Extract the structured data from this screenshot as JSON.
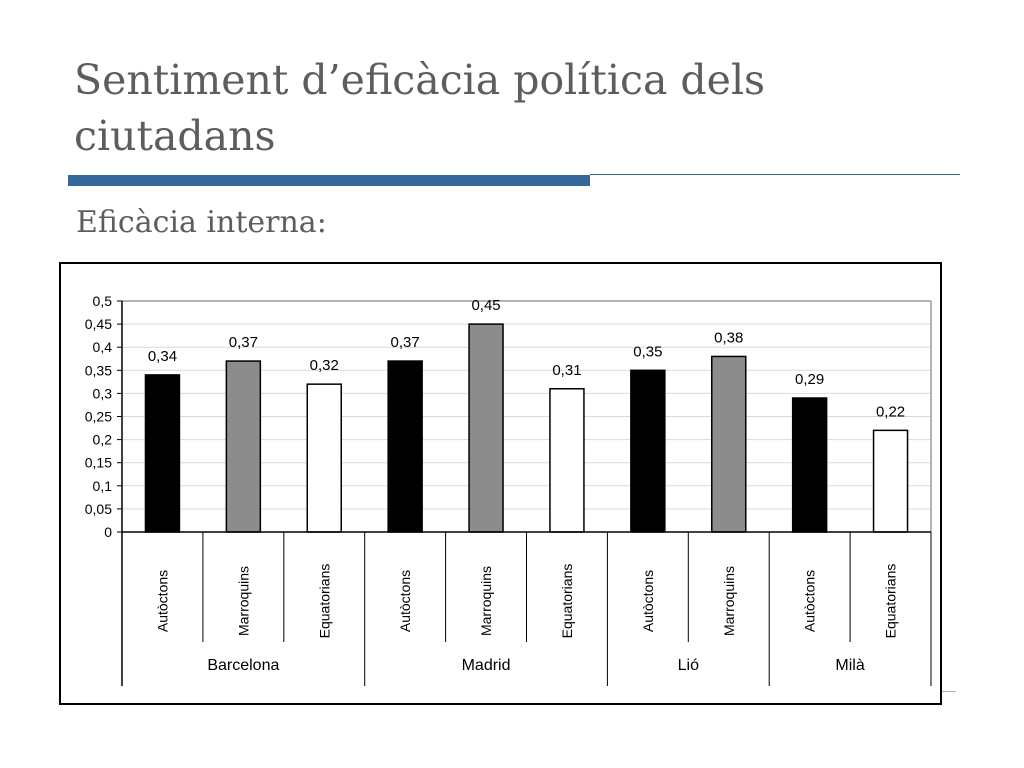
{
  "slide": {
    "title": "Sentiment d’eficàcia política dels ciutadans",
    "subtitle": "Eficàcia interna:"
  },
  "colors": {
    "accent": "#34679a",
    "text": "#5d5d5d",
    "series_autoctons": "#000000",
    "series_marroquins": "#8c8c8c",
    "series_equatorians": "#ffffff"
  },
  "chart_data": {
    "type": "bar",
    "title": "",
    "xlabel": "",
    "ylabel": "",
    "ylim": [
      0,
      0.5
    ],
    "yticks": [
      "0",
      "0,05",
      "0,1",
      "0,15",
      "0,2",
      "0,25",
      "0,3",
      "0,35",
      "0,4",
      "0,45",
      "0,5"
    ],
    "grid": true,
    "groups": [
      {
        "city": "Barcelona",
        "bars": [
          {
            "category": "Autòctons",
            "value": 0.34,
            "label": "0,34"
          },
          {
            "category": "Marroquins",
            "value": 0.37,
            "label": "0,37"
          },
          {
            "category": "Equatorians",
            "value": 0.32,
            "label": "0,32"
          }
        ]
      },
      {
        "city": "Madrid",
        "bars": [
          {
            "category": "Autòctons",
            "value": 0.37,
            "label": "0,37"
          },
          {
            "category": "Marroquins",
            "value": 0.45,
            "label": "0,45"
          },
          {
            "category": "Equatorians",
            "value": 0.31,
            "label": "0,31"
          }
        ]
      },
      {
        "city": "Lió",
        "bars": [
          {
            "category": "Autòctons",
            "value": 0.35,
            "label": "0,35"
          },
          {
            "category": "Marroquins",
            "value": 0.38,
            "label": "0,38"
          }
        ]
      },
      {
        "city": "Milà",
        "bars": [
          {
            "category": "Autòctons",
            "value": 0.29,
            "label": "0,29"
          },
          {
            "category": "Equatorians",
            "value": 0.22,
            "label": "0,22"
          }
        ]
      }
    ]
  }
}
